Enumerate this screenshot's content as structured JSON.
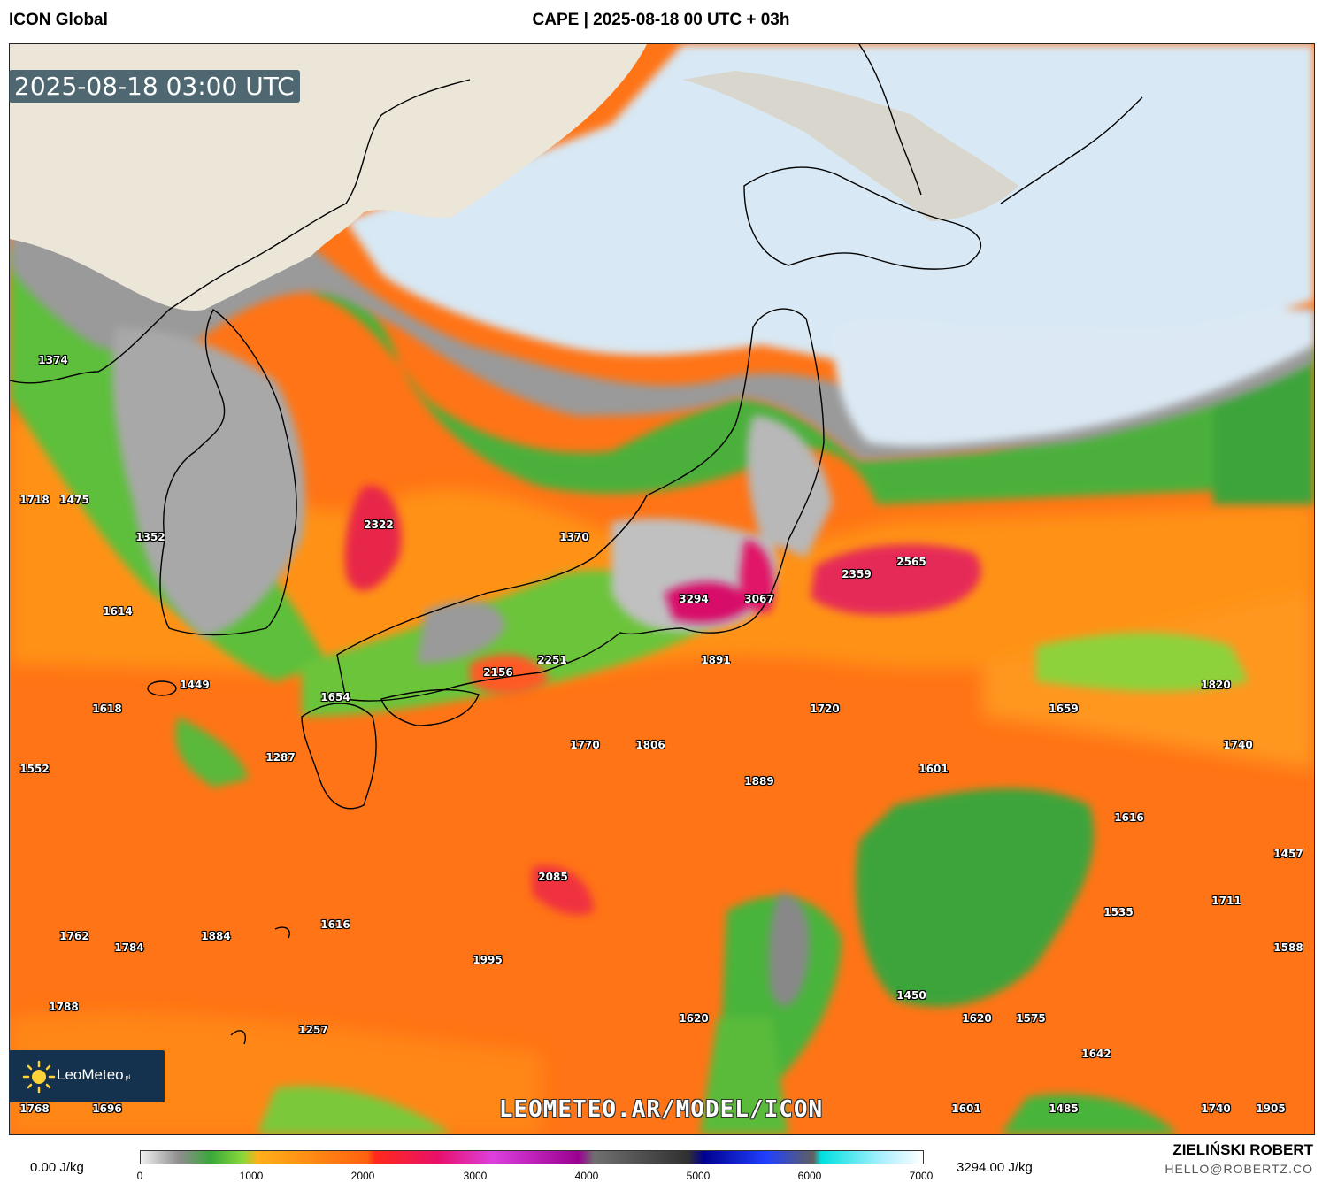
{
  "header": {
    "model": "ICON Global",
    "title": "CAPE | 2025-08-18 00 UTC + 03h"
  },
  "timestamp": "2025-08-18 03:00 UTC",
  "watermark": "LEOMETEO.AR/MODEL/ICON",
  "logo": {
    "name": "LeoMeteo",
    "suffix": ".pl"
  },
  "legend": {
    "min_label": "0.00 J/kg",
    "max_label": "3294.00 J/kg",
    "ticks": [
      "0",
      "1000",
      "2000",
      "3000",
      "4000",
      "5000",
      "6000",
      "7000"
    ]
  },
  "credits": {
    "author": "ZIELIŃSKI ROBERT",
    "email": "HELLO@ROBERTZ.CO"
  },
  "values": [
    {
      "v": "1374"
    },
    {
      "v": "1718"
    },
    {
      "v": "1475"
    },
    {
      "v": "1352"
    },
    {
      "v": "1614"
    },
    {
      "v": "1449"
    },
    {
      "v": "1618"
    },
    {
      "v": "1552"
    },
    {
      "v": "1287"
    },
    {
      "v": "1654"
    },
    {
      "v": "2322"
    },
    {
      "v": "1370"
    },
    {
      "v": "2251"
    },
    {
      "v": "2156"
    },
    {
      "v": "3294"
    },
    {
      "v": "3067"
    },
    {
      "v": "2359"
    },
    {
      "v": "2565"
    },
    {
      "v": "1891"
    },
    {
      "v": "1720"
    },
    {
      "v": "1659"
    },
    {
      "v": "1820"
    },
    {
      "v": "1770"
    },
    {
      "v": "1806"
    },
    {
      "v": "1740"
    },
    {
      "v": "1889"
    },
    {
      "v": "1601"
    },
    {
      "v": "1616"
    },
    {
      "v": "1457"
    },
    {
      "v": "2085"
    },
    {
      "v": "1711"
    },
    {
      "v": "1535"
    },
    {
      "v": "1588"
    },
    {
      "v": "1762"
    },
    {
      "v": "1784"
    },
    {
      "v": "1884"
    },
    {
      "v": "1616"
    },
    {
      "v": "1995"
    },
    {
      "v": "1788"
    },
    {
      "v": "1257"
    },
    {
      "v": "1450"
    },
    {
      "v": "1620"
    },
    {
      "v": "1620"
    },
    {
      "v": "1575"
    },
    {
      "v": "1642"
    },
    {
      "v": "1768"
    },
    {
      "v": "1696"
    },
    {
      "v": "1601"
    },
    {
      "v": "1485"
    },
    {
      "v": "1740"
    },
    {
      "v": "1905"
    }
  ]
}
